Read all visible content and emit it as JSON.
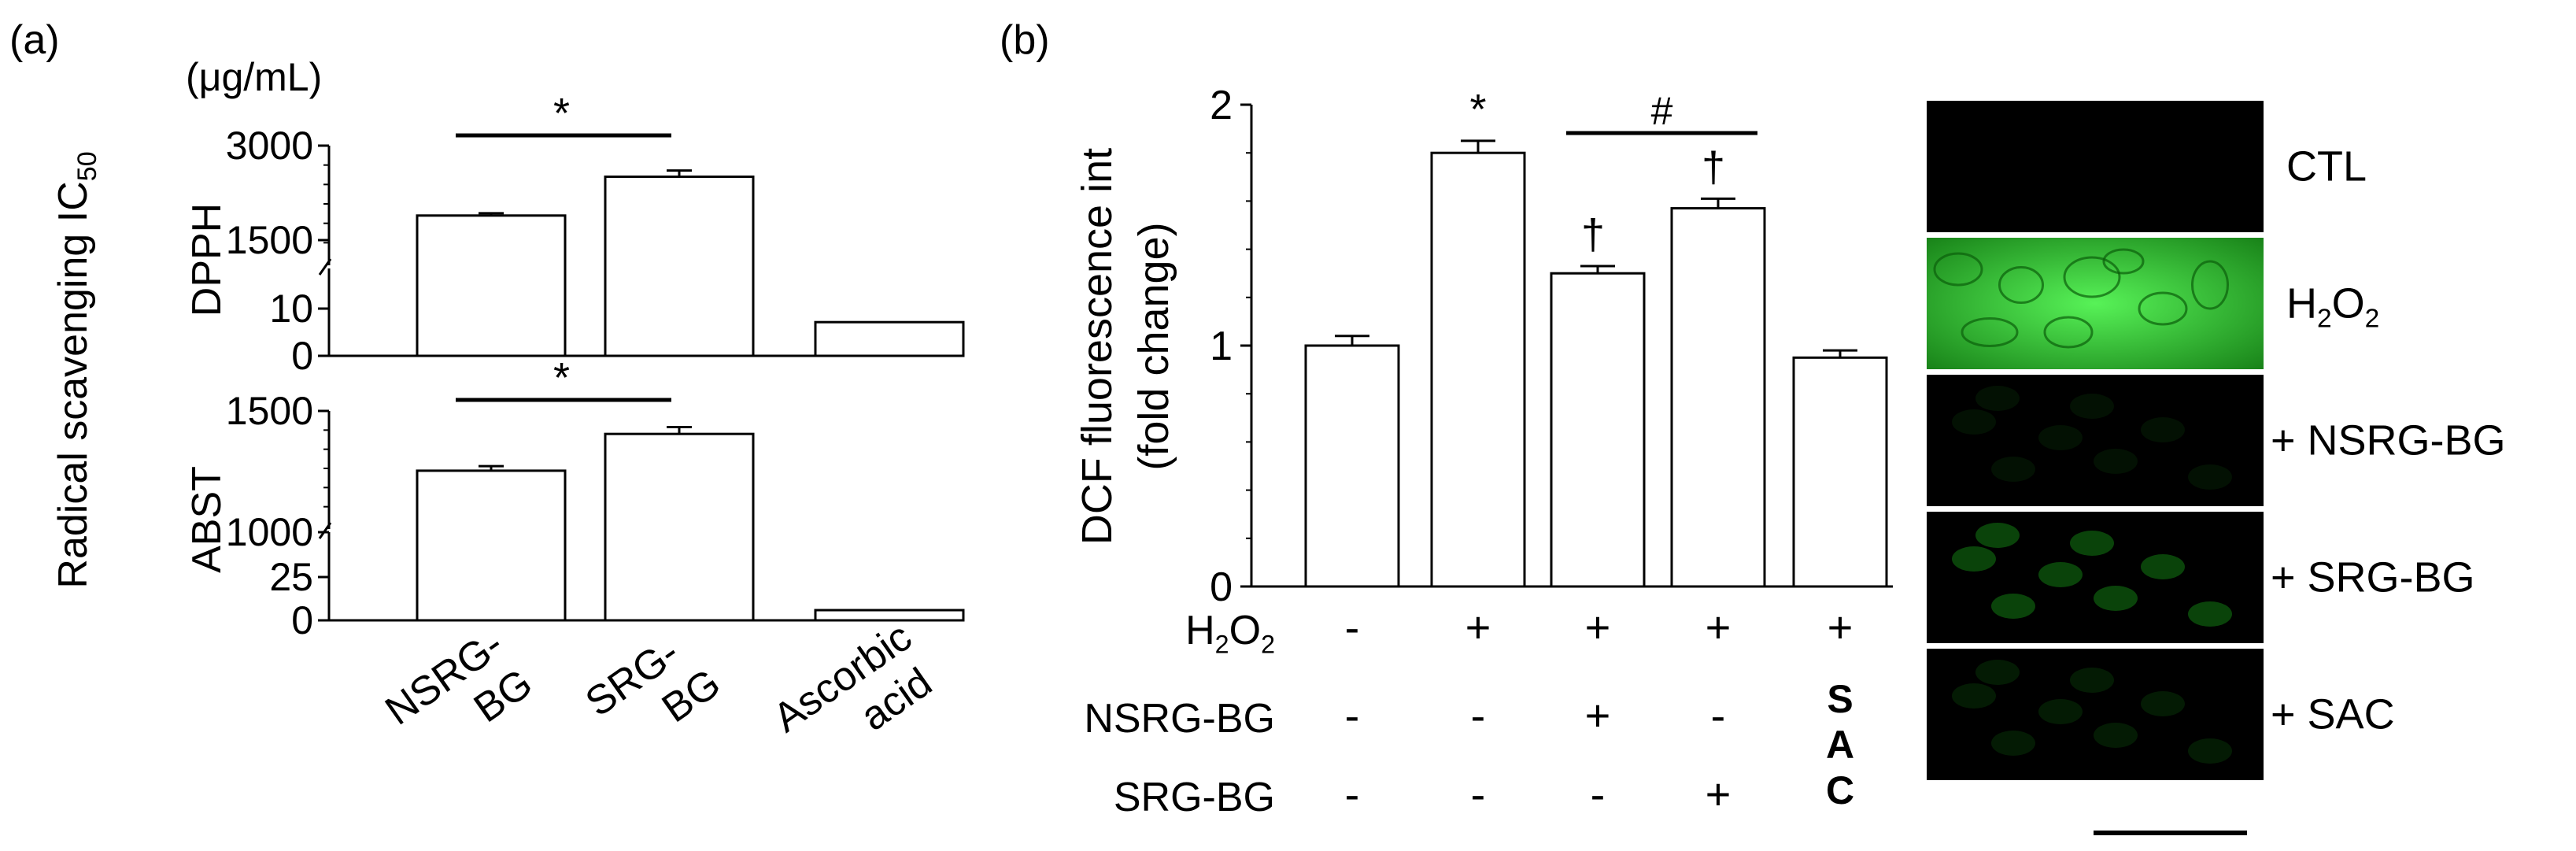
{
  "panels": {
    "a": {
      "label": "(a)"
    },
    "b": {
      "label": "(b)"
    }
  },
  "colors": {
    "bar_fill": "#ffffff",
    "bar_stroke": "#000000",
    "micro_bg": "#000000",
    "fluorescence": "#22dd22"
  },
  "micrographs": {
    "labels": [
      "CTL",
      "H2O2",
      "+ NSRG-BG",
      "+ SRG-BG",
      "+ SAC"
    ],
    "intensity": [
      0.0,
      0.95,
      0.08,
      0.3,
      0.12
    ]
  },
  "chart_data": [
    {
      "type": "bar",
      "panel": "a",
      "subpanel": "DPPH",
      "unit": "(μg/mL)",
      "ylabel": "Radical scavenging IC",
      "ylabel_sub": "50",
      "ylabel_inner": "DPPH",
      "categories": [
        "NSRG-BG",
        "SRG-BG",
        "Ascorbic acid"
      ],
      "category_lines": [
        [
          "NSRG-",
          "BG"
        ],
        [
          "SRG-",
          "BG"
        ],
        [
          "Ascorbic",
          "acid"
        ]
      ],
      "values": [
        2100,
        2600,
        8
      ],
      "errors": [
        30,
        80,
        0
      ],
      "broken_axis": {
        "lower": [
          0,
          20
        ],
        "upper": [
          1500,
          3000
        ]
      },
      "yticks": [
        "3000",
        "1500",
        "10",
        "0"
      ],
      "significance": [
        {
          "from": 0,
          "to": 1,
          "label": "*"
        }
      ]
    },
    {
      "type": "bar",
      "panel": "a",
      "subpanel": "ABST",
      "ylabel_inner": "ABST",
      "categories": [
        "NSRG-BG",
        "SRG-BG",
        "Ascorbic acid"
      ],
      "values": [
        1240,
        1400,
        6
      ],
      "errors": [
        20,
        30,
        0
      ],
      "broken_axis": {
        "lower": [
          0,
          50
        ],
        "upper": [
          1000,
          1500
        ]
      },
      "yticks": [
        "1500",
        "1000",
        "25",
        "0"
      ],
      "significance": [
        {
          "from": 0,
          "to": 1,
          "label": "*"
        }
      ]
    },
    {
      "type": "bar",
      "panel": "b",
      "ylabel_lines": [
        "DCF fluorescence int",
        "(fold change)"
      ],
      "ylim": [
        0,
        2
      ],
      "yticks": [
        "0",
        "1",
        "2"
      ],
      "values": [
        1.0,
        1.8,
        1.3,
        1.57,
        0.95
      ],
      "errors": [
        0.04,
        0.05,
        0.03,
        0.04,
        0.03
      ],
      "marks": [
        "",
        "*",
        "†",
        "†",
        ""
      ],
      "significance": [
        {
          "from": 2,
          "to": 3,
          "label": "#"
        }
      ],
      "treatment_rows": [
        {
          "label": "H2O2",
          "values": [
            "-",
            "+",
            "+",
            "+",
            "+"
          ]
        },
        {
          "label": "NSRG-BG",
          "values": [
            "-",
            "-",
            "+",
            "-",
            ""
          ]
        },
        {
          "label": "SRG-BG",
          "values": [
            "-",
            "-",
            "-",
            "+",
            ""
          ]
        }
      ],
      "vertical_label": {
        "column": 4,
        "letters": [
          "S",
          "A",
          "C"
        ]
      }
    }
  ]
}
